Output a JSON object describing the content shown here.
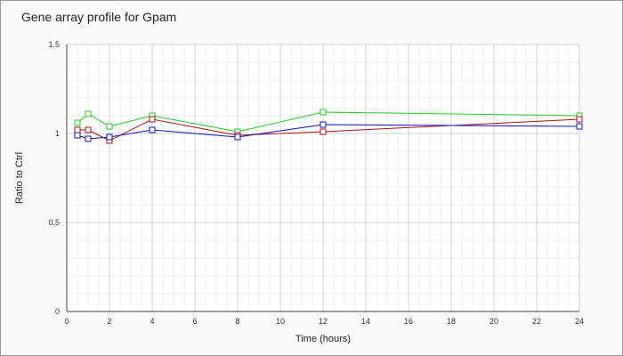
{
  "chart_data": {
    "type": "line",
    "title": "Gene array profile for Gpam",
    "xlabel": "Time (hours)",
    "ylabel": "Ratio to Ctrl",
    "xlim": [
      0,
      24
    ],
    "ylim": [
      0,
      1.5
    ],
    "x_ticks": [
      0,
      2,
      4,
      6,
      8,
      10,
      12,
      14,
      16,
      18,
      20,
      22,
      24
    ],
    "y_ticks": [
      0,
      0.5,
      1,
      1.5
    ],
    "y_tick_labels": [
      "0",
      "0.5",
      "1",
      "1.5"
    ],
    "grid": true,
    "marker": "square",
    "series": [
      {
        "color": "#22cc22",
        "x": [
          0.5,
          1,
          2,
          4,
          8,
          12,
          24
        ],
        "y": [
          1.06,
          1.11,
          1.04,
          1.1,
          1.01,
          1.12,
          1.1
        ]
      },
      {
        "color": "#aa1111",
        "x": [
          0.5,
          1,
          2,
          4,
          8,
          12,
          24
        ],
        "y": [
          1.02,
          1.02,
          0.96,
          1.08,
          0.99,
          1.01,
          1.08
        ]
      },
      {
        "color": "#1111bb",
        "x": [
          0.5,
          1,
          2,
          4,
          8,
          12,
          24
        ],
        "y": [
          0.99,
          0.97,
          0.98,
          1.02,
          0.98,
          1.05,
          1.04
        ]
      }
    ]
  }
}
